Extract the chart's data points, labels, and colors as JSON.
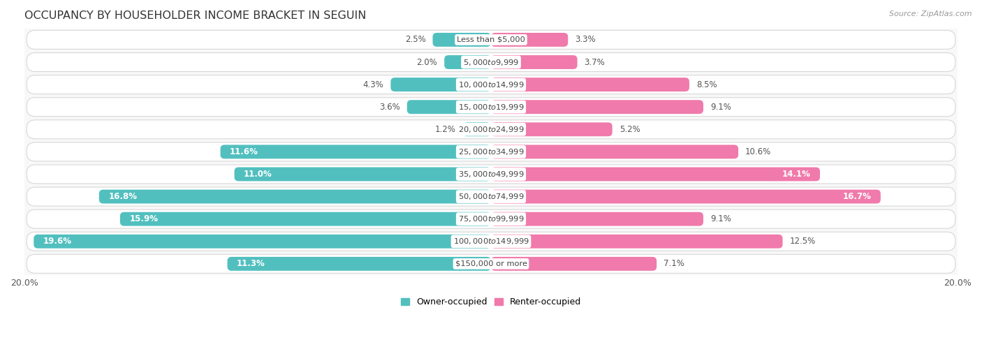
{
  "title": "OCCUPANCY BY HOUSEHOLDER INCOME BRACKET IN SEGUIN",
  "source": "Source: ZipAtlas.com",
  "categories": [
    "Less than $5,000",
    "$5,000 to $9,999",
    "$10,000 to $14,999",
    "$15,000 to $19,999",
    "$20,000 to $24,999",
    "$25,000 to $34,999",
    "$35,000 to $49,999",
    "$50,000 to $74,999",
    "$75,000 to $99,999",
    "$100,000 to $149,999",
    "$150,000 or more"
  ],
  "owner_values": [
    2.5,
    2.0,
    4.3,
    3.6,
    1.2,
    11.6,
    11.0,
    16.8,
    15.9,
    19.6,
    11.3
  ],
  "renter_values": [
    3.3,
    3.7,
    8.5,
    9.1,
    5.2,
    10.6,
    14.1,
    16.7,
    9.1,
    12.5,
    7.1
  ],
  "owner_color": "#52bfbf",
  "renter_color": "#f07aab",
  "bar_height": 0.62,
  "xlim": 20.0,
  "row_bg_color": "#f0f0f0",
  "row_border_color": "#d8d8d8",
  "title_fontsize": 11.5,
  "label_fontsize": 8.5,
  "category_fontsize": 8.2,
  "legend_fontsize": 9,
  "source_fontsize": 8
}
